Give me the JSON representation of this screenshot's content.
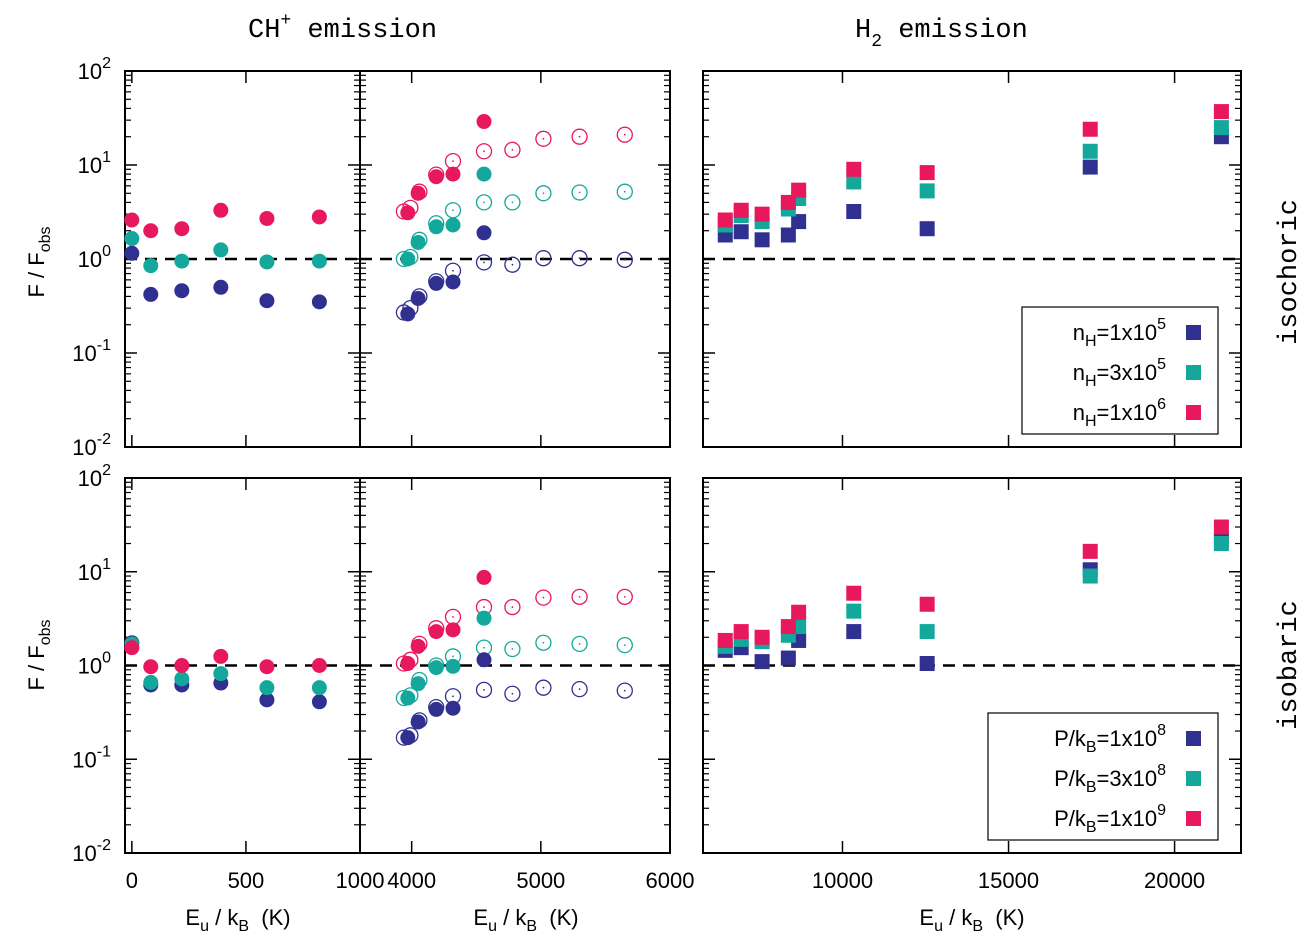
{
  "colors": {
    "n1": "#303090",
    "n3": "#14a89c",
    "n10": "#e8185c",
    "ref_line": "#000000"
  },
  "titles": {
    "ch_main": "CH",
    "ch_sup": "+",
    "ch_rest": " emission",
    "h2_main": "H",
    "h2_sub": "2",
    "h2_rest": " emission"
  },
  "row_labels": {
    "top": "isochoric",
    "bottom": "isobaric"
  },
  "ylabel": {
    "main": "F / F",
    "sub": "obs"
  },
  "xlabel": {
    "main": "E",
    "sub1": "u",
    "mid": " / k",
    "sub2": "B",
    "unit": "  (K)"
  },
  "y_ticks": [
    {
      "v": 0.01,
      "base": "10",
      "exp": "-2"
    },
    {
      "v": 0.1,
      "base": "10",
      "exp": "-1"
    },
    {
      "v": 1,
      "base": "10",
      "exp": "0"
    },
    {
      "v": 10,
      "base": "10",
      "exp": "1"
    },
    {
      "v": 100,
      "base": "10",
      "exp": "2"
    }
  ],
  "x_ticks": {
    "p1": [
      {
        "v": 0,
        "label": "0"
      },
      {
        "v": 500,
        "label": "500"
      },
      {
        "v": 1000,
        "label": "1000"
      }
    ],
    "p2": [
      {
        "v": 4000,
        "label": "4000"
      },
      {
        "v": 5000,
        "label": "5000"
      },
      {
        "v": 6000,
        "label": "6000"
      }
    ],
    "p3": [
      {
        "v": 10000,
        "label": "10000"
      },
      {
        "v": 15000,
        "label": "15000"
      },
      {
        "v": 20000,
        "label": "20000"
      }
    ]
  },
  "legends": {
    "top": [
      {
        "pre": "n",
        "sub": "H",
        "mid": "=1x10",
        "sup": "5",
        "color": "n1"
      },
      {
        "pre": "n",
        "sub": "H",
        "mid": "=3x10",
        "sup": "5",
        "color": "n3"
      },
      {
        "pre": "n",
        "sub": "H",
        "mid": "=1x10",
        "sup": "6",
        "color": "n10"
      }
    ],
    "bottom": [
      {
        "pre": "P/k",
        "sub": "B",
        "mid": "=1x10",
        "sup": "8",
        "color": "n1"
      },
      {
        "pre": "P/k",
        "sub": "B",
        "mid": "=3x10",
        "sup": "8",
        "color": "n3"
      },
      {
        "pre": "P/k",
        "sub": "B",
        "mid": "=1x10",
        "sup": "9",
        "color": "n10"
      }
    ]
  },
  "chart_data": [
    {
      "id": "ch-low-isochoric",
      "type": "scatter",
      "row": "isochoric",
      "xlim": [
        -30,
        1000
      ],
      "ylim": [
        0.01,
        100
      ],
      "yscale": "log",
      "reference_line": 1,
      "marker": "filled-circle",
      "x": [
        0,
        83,
        219,
        390,
        592,
        822
      ],
      "series": [
        {
          "color": "n1",
          "y": [
            1.15,
            0.42,
            0.46,
            0.5,
            0.36,
            0.35
          ]
        },
        {
          "color": "n3",
          "y": [
            1.65,
            0.85,
            0.95,
            1.25,
            0.93,
            0.95
          ]
        },
        {
          "color": "n10",
          "y": [
            2.6,
            2.0,
            2.1,
            3.3,
            2.7,
            2.8
          ]
        }
      ]
    },
    {
      "id": "ch-high-isochoric",
      "type": "scatter",
      "row": "isochoric",
      "xlim": [
        3600,
        6000
      ],
      "ylim": [
        0.01,
        100
      ],
      "yscale": "log",
      "reference_line": 1,
      "filled_x": [
        3970,
        4050,
        4190,
        4320,
        4560
      ],
      "filled": [
        {
          "color": "n1",
          "y": [
            0.26,
            0.38,
            0.55,
            0.57,
            1.9
          ]
        },
        {
          "color": "n3",
          "y": [
            1.0,
            1.5,
            2.2,
            2.3,
            8.0
          ]
        },
        {
          "color": "n10",
          "y": [
            3.1,
            5.0,
            7.5,
            8.0,
            29
          ]
        }
      ],
      "open_x": [
        3940,
        3990,
        4060,
        4190,
        4320,
        4560,
        4780,
        5020,
        5300,
        5650
      ],
      "open": [
        {
          "color": "n1",
          "y": [
            0.27,
            0.3,
            0.4,
            0.58,
            0.75,
            0.92,
            0.87,
            1.02,
            1.02,
            0.98
          ]
        },
        {
          "color": "n3",
          "y": [
            1.0,
            1.05,
            1.6,
            2.4,
            3.3,
            4.0,
            4.0,
            5.0,
            5.1,
            5.2
          ]
        },
        {
          "color": "n10",
          "y": [
            3.2,
            3.5,
            5.2,
            7.9,
            11,
            14,
            14.5,
            19,
            20,
            21
          ]
        }
      ]
    },
    {
      "id": "h2-isochoric",
      "type": "scatter",
      "row": "isochoric",
      "xlim": [
        5800,
        22000
      ],
      "ylim": [
        0.01,
        100
      ],
      "yscale": "log",
      "reference_line": 1,
      "marker": "filled-square",
      "x": [
        6470,
        6950,
        7580,
        8370,
        8680,
        10340,
        12550,
        17460,
        21410
      ],
      "series": [
        {
          "name": "n_H=1x10^5",
          "color": "n1",
          "y": [
            1.8,
            1.95,
            1.6,
            1.8,
            2.5,
            3.2,
            2.1,
            9.5,
            20
          ]
        },
        {
          "name": "n_H=3x10^5",
          "color": "n3",
          "y": [
            2.3,
            2.9,
            2.5,
            3.4,
            4.4,
            6.6,
            5.3,
            14,
            25
          ]
        },
        {
          "name": "n_H=1x10^6",
          "color": "n10",
          "y": [
            2.6,
            3.3,
            3.0,
            4.0,
            5.4,
            9.0,
            8.3,
            24,
            37
          ]
        }
      ]
    },
    {
      "id": "ch-low-isobaric",
      "type": "scatter",
      "row": "isobaric",
      "xlim": [
        -30,
        1000
      ],
      "ylim": [
        0.01,
        100
      ],
      "yscale": "log",
      "reference_line": 1,
      "marker": "filled-circle",
      "x": [
        0,
        83,
        219,
        390,
        592,
        822
      ],
      "series": [
        {
          "color": "n1",
          "y": [
            1.75,
            0.62,
            0.62,
            0.65,
            0.43,
            0.41
          ]
        },
        {
          "color": "n3",
          "y": [
            1.7,
            0.66,
            0.72,
            0.82,
            0.58,
            0.58
          ]
        },
        {
          "color": "n10",
          "y": [
            1.55,
            0.97,
            1.0,
            1.25,
            0.97,
            1.0
          ]
        }
      ]
    },
    {
      "id": "ch-high-isobaric",
      "type": "scatter",
      "row": "isobaric",
      "xlim": [
        3600,
        6000
      ],
      "ylim": [
        0.01,
        100
      ],
      "yscale": "log",
      "reference_line": 1,
      "filled_x": [
        3970,
        4050,
        4190,
        4320,
        4560
      ],
      "filled": [
        {
          "color": "n1",
          "y": [
            0.17,
            0.25,
            0.34,
            0.35,
            1.15
          ]
        },
        {
          "color": "n3",
          "y": [
            0.45,
            0.64,
            0.95,
            0.98,
            3.2
          ]
        },
        {
          "color": "n10",
          "y": [
            1.05,
            1.6,
            2.3,
            2.4,
            8.7
          ]
        }
      ],
      "open_x": [
        3940,
        3990,
        4060,
        4190,
        4320,
        4560,
        4780,
        5020,
        5300,
        5650
      ],
      "open": [
        {
          "color": "n1",
          "y": [
            0.17,
            0.18,
            0.26,
            0.36,
            0.47,
            0.55,
            0.5,
            0.58,
            0.56,
            0.54
          ]
        },
        {
          "color": "n3",
          "y": [
            0.45,
            0.48,
            0.7,
            1.0,
            1.25,
            1.55,
            1.5,
            1.75,
            1.7,
            1.65
          ]
        },
        {
          "color": "n10",
          "y": [
            1.05,
            1.15,
            1.7,
            2.5,
            3.3,
            4.2,
            4.2,
            5.3,
            5.4,
            5.4
          ]
        }
      ]
    },
    {
      "id": "h2-isobaric",
      "type": "scatter",
      "row": "isobaric",
      "xlim": [
        5800,
        22000
      ],
      "ylim": [
        0.01,
        100
      ],
      "yscale": "log",
      "reference_line": 1,
      "marker": "filled-square",
      "x": [
        6470,
        6950,
        7580,
        8370,
        8680,
        10340,
        12550,
        17460,
        21410
      ],
      "series": [
        {
          "name": "P/k_B=1x10^8",
          "color": "n1",
          "y": [
            1.45,
            1.55,
            1.1,
            1.2,
            1.85,
            2.3,
            1.05,
            10.5,
            22
          ]
        },
        {
          "name": "P/k_B=3x10^8",
          "color": "n3",
          "y": [
            1.6,
            1.9,
            1.8,
            2.1,
            2.6,
            3.8,
            2.3,
            9.0,
            20
          ]
        },
        {
          "name": "P/k_B=1x10^9",
          "color": "n10",
          "y": [
            1.85,
            2.3,
            2.0,
            2.6,
            3.7,
            5.9,
            4.5,
            16.5,
            30
          ]
        }
      ]
    }
  ]
}
